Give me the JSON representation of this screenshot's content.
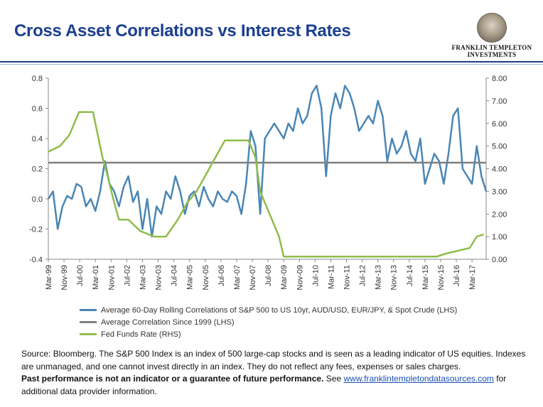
{
  "header": {
    "title": "Cross Asset Correlations vs Interest Rates",
    "logo_line1": "FRANKLIN TEMPLETON",
    "logo_line2": "INVESTMENTS"
  },
  "chart_data": {
    "type": "line",
    "y_left": {
      "ticks": [
        "0.8",
        "0.6",
        "0.4",
        "0.2",
        "0.0",
        "-0.2",
        "-0.4"
      ],
      "range": [
        -0.4,
        0.8
      ]
    },
    "y_right": {
      "ticks": [
        "8.00",
        "7.00",
        "6.00",
        "5.00",
        "4.00",
        "3.00",
        "2.00",
        "1.00",
        "0.00"
      ],
      "range": [
        0,
        8
      ]
    },
    "x_ticks": [
      "Mar-99",
      "Nov-99",
      "Jul-00",
      "Mar-01",
      "Nov-01",
      "Jul-02",
      "Mar-03",
      "Nov-03",
      "Jul-04",
      "Mar-05",
      "Nov-05",
      "Jul-06",
      "Mar-07",
      "Nov-07",
      "Jul-08",
      "Mar-09",
      "Nov-09",
      "Jul-10",
      "Mar-11",
      "Nov-11",
      "Jul-12",
      "Mar-13",
      "Nov-13",
      "Jul-14",
      "Mar-15",
      "Nov-15",
      "Jul-16",
      "Mar-17"
    ],
    "x_range": [
      1999.0,
      2017.6
    ],
    "grid": false,
    "legend_position": "bottom",
    "series": [
      {
        "name": "Average 60-Day Rolling Correlations of S&P 500 to US 10yr, AUD/USD, EUR/JPY, & Spot Crude (LHS)",
        "axis": "left",
        "color": "#4a86b4",
        "x": [
          1999.0,
          1999.2,
          1999.4,
          1999.6,
          1999.8,
          2000.0,
          2000.2,
          2000.4,
          2000.6,
          2000.8,
          2001.0,
          2001.2,
          2001.4,
          2001.6,
          2001.8,
          2002.0,
          2002.2,
          2002.4,
          2002.6,
          2002.8,
          2003.0,
          2003.2,
          2003.4,
          2003.6,
          2003.8,
          2004.0,
          2004.2,
          2004.4,
          2004.6,
          2004.8,
          2005.0,
          2005.2,
          2005.4,
          2005.6,
          2005.8,
          2006.0,
          2006.2,
          2006.4,
          2006.6,
          2006.8,
          2007.0,
          2007.2,
          2007.4,
          2007.6,
          2007.8,
          2008.0,
          2008.2,
          2008.4,
          2008.6,
          2008.8,
          2009.0,
          2009.2,
          2009.4,
          2009.6,
          2009.8,
          2010.0,
          2010.2,
          2010.4,
          2010.6,
          2010.8,
          2011.0,
          2011.2,
          2011.4,
          2011.6,
          2011.8,
          2012.0,
          2012.2,
          2012.4,
          2012.6,
          2012.8,
          2013.0,
          2013.2,
          2013.4,
          2013.6,
          2013.8,
          2014.0,
          2014.2,
          2014.4,
          2014.6,
          2014.8,
          2015.0,
          2015.2,
          2015.4,
          2015.6,
          2015.8,
          2016.0,
          2016.2,
          2016.4,
          2016.6,
          2016.8,
          2017.0,
          2017.2,
          2017.4,
          2017.6
        ],
        "y": [
          0.0,
          0.05,
          -0.2,
          -0.05,
          0.02,
          0.0,
          0.1,
          0.08,
          -0.05,
          0.0,
          -0.08,
          0.05,
          0.25,
          0.1,
          0.05,
          -0.05,
          0.08,
          0.15,
          -0.02,
          0.05,
          -0.2,
          0.0,
          -0.25,
          -0.05,
          -0.1,
          0.05,
          0.0,
          0.15,
          0.05,
          -0.1,
          0.02,
          0.05,
          -0.05,
          0.08,
          0.0,
          -0.05,
          0.05,
          0.0,
          -0.02,
          0.05,
          0.02,
          -0.1,
          0.1,
          0.45,
          0.35,
          -0.1,
          0.4,
          0.45,
          0.5,
          0.45,
          0.4,
          0.5,
          0.45,
          0.6,
          0.5,
          0.55,
          0.7,
          0.75,
          0.6,
          0.15,
          0.55,
          0.7,
          0.6,
          0.75,
          0.7,
          0.6,
          0.45,
          0.5,
          0.55,
          0.5,
          0.65,
          0.55,
          0.25,
          0.4,
          0.3,
          0.35,
          0.45,
          0.3,
          0.25,
          0.4,
          0.1,
          0.2,
          0.3,
          0.25,
          0.1,
          0.3,
          0.55,
          0.6,
          0.2,
          0.15,
          0.1,
          0.35,
          0.15,
          0.05
        ]
      },
      {
        "name": "Average Correlation Since 1999 (LHS)",
        "axis": "left",
        "color": "#7f7f7f",
        "x": [
          1999.0,
          2017.6
        ],
        "y": [
          0.24,
          0.24
        ]
      },
      {
        "name": "Fed Funds Rate (RHS)",
        "axis": "right",
        "color": "#8fbc4a",
        "x": [
          1999.0,
          1999.5,
          1999.9,
          2000.3,
          2000.6,
          2000.9,
          2001.0,
          2001.3,
          2001.5,
          2001.8,
          2002.0,
          2002.4,
          2002.9,
          2003.5,
          2004.0,
          2004.5,
          2004.9,
          2005.3,
          2005.7,
          2006.1,
          2006.5,
          2007.5,
          2007.8,
          2008.0,
          2008.3,
          2008.8,
          2009.0,
          2012.0,
          2015.5,
          2015.9,
          2016.9,
          2017.2,
          2017.5
        ],
        "y": [
          4.75,
          5.0,
          5.5,
          6.5,
          6.5,
          6.5,
          6.0,
          4.5,
          3.75,
          2.5,
          1.75,
          1.75,
          1.25,
          1.0,
          1.0,
          1.75,
          2.5,
          3.0,
          3.75,
          4.5,
          5.25,
          5.25,
          4.5,
          3.0,
          2.25,
          1.0,
          0.12,
          0.12,
          0.12,
          0.25,
          0.5,
          1.0,
          1.1
        ]
      }
    ]
  },
  "footer": {
    "source_text": "Source: Bloomberg. The S&P 500 Index is an index of 500 large-cap stocks and is seen as a leading indicator of US equities. Indexes are unmanaged, and one cannot invest directly in an index. They do not reflect any fees, expenses or sales charges.",
    "disclaimer_bold": "Past performance is not an indicator or a guarantee of future performance.",
    "see_text": "See",
    "link_text": "www.franklintempletondatasources.com",
    "after_link": "for additional data provider information."
  }
}
